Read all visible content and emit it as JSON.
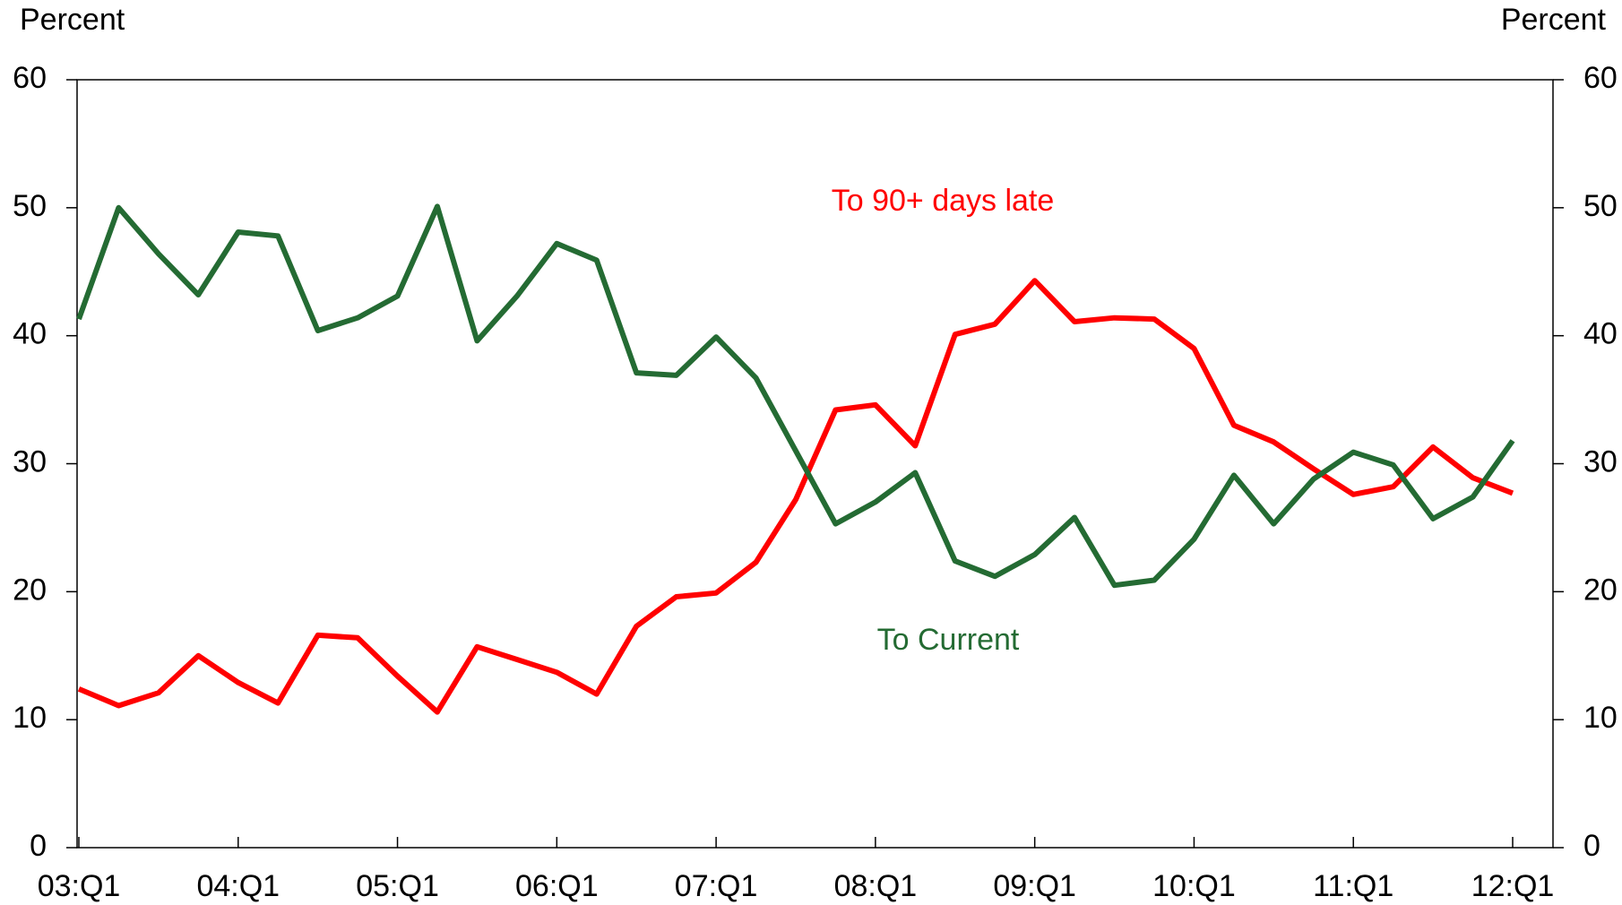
{
  "chart_data": {
    "type": "line",
    "y_label": "Percent",
    "y2_label": "Percent",
    "categories": [
      "03:Q1",
      null,
      null,
      null,
      "04:Q1",
      null,
      null,
      null,
      "05:Q1",
      null,
      null,
      null,
      "06:Q1",
      null,
      null,
      null,
      "07:Q1",
      null,
      null,
      null,
      "08:Q1",
      null,
      null,
      null,
      "09:Q1",
      null,
      null,
      null,
      "10:Q1",
      null,
      null,
      null,
      "11:Q1",
      null,
      null,
      null,
      "12:Q1"
    ],
    "series": [
      {
        "name": "To 90+ days late",
        "color": "#ff0000",
        "values": [
          12.4,
          11.1,
          12.1,
          15.0,
          12.9,
          11.3,
          16.6,
          16.4,
          13.4,
          10.6,
          15.7,
          14.7,
          13.7,
          12.0,
          17.3,
          19.6,
          19.9,
          22.3,
          27.2,
          34.2,
          34.6,
          31.4,
          40.1,
          40.9,
          44.3,
          41.1,
          41.4,
          41.3,
          39.0,
          33.0,
          31.7,
          29.6,
          27.6,
          28.2,
          31.3,
          28.9,
          27.7
        ]
      },
      {
        "name": "To Current",
        "color": "#246b33",
        "values": [
          41.3,
          50.0,
          46.4,
          43.2,
          48.1,
          47.8,
          40.4,
          41.4,
          43.1,
          50.1,
          39.6,
          43.1,
          47.2,
          45.9,
          37.1,
          36.9,
          39.9,
          36.7,
          31.0,
          25.3,
          27.0,
          29.3,
          22.4,
          21.2,
          22.9,
          25.8,
          20.5,
          20.9,
          24.1,
          29.1,
          25.3,
          28.8,
          30.9,
          29.9,
          25.7,
          27.4,
          31.8
        ]
      }
    ],
    "ylim": [
      0,
      60
    ],
    "yticks": [
      0,
      10,
      20,
      30,
      40,
      50,
      60
    ],
    "y2lim": [
      0,
      60
    ],
    "y2ticks": [
      0,
      10,
      20,
      30,
      40,
      50,
      60
    ],
    "grid": false
  }
}
